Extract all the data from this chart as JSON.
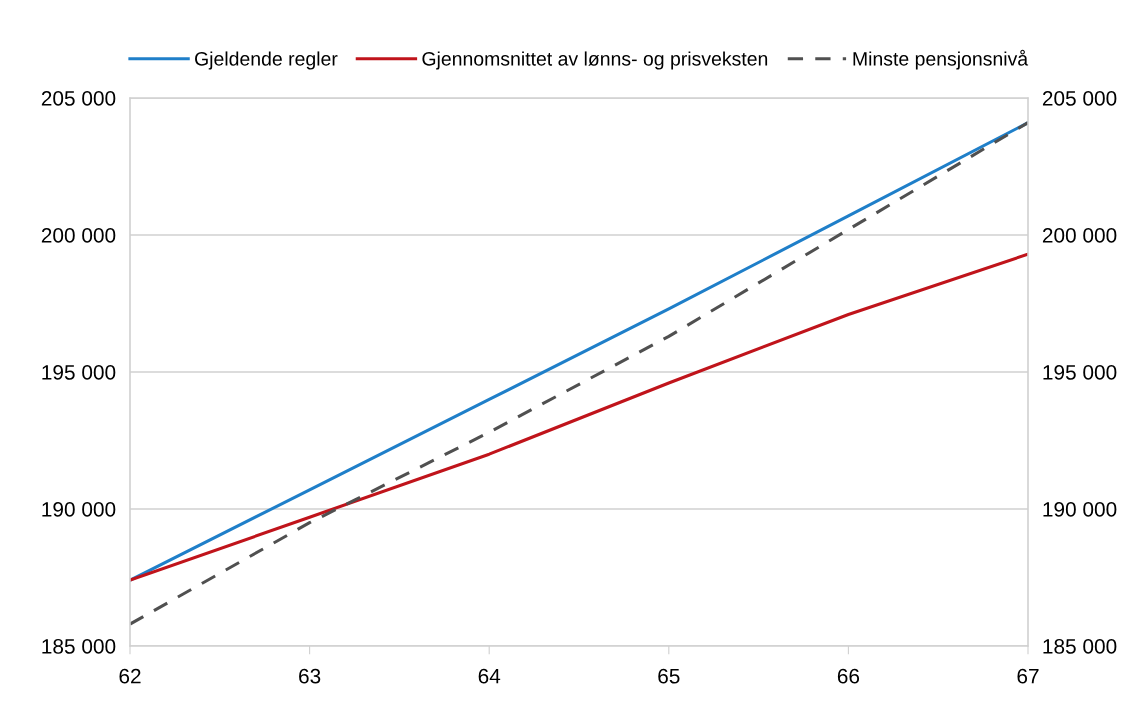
{
  "chart_data": {
    "type": "line",
    "x": [
      62,
      63,
      64,
      65,
      66,
      67
    ],
    "series": [
      {
        "name": "Gjeldende regler",
        "color": "#1f7fc9",
        "values": [
          187400,
          190700,
          194000,
          197300,
          200700,
          204100
        ]
      },
      {
        "name": "Gjennomsnittet av lønns- og prisveksten",
        "color": "#c0141b",
        "values": [
          187400,
          189700,
          192000,
          194600,
          197100,
          199300
        ]
      },
      {
        "name": "Minste pensjonsnivå",
        "color": "#505050",
        "line_style": "dashed",
        "values": [
          185800,
          189500,
          192800,
          196300,
          200200,
          204100
        ]
      }
    ],
    "xlim": [
      62,
      67
    ],
    "xticks": [
      62,
      63,
      64,
      65,
      66,
      67
    ],
    "ylim": [
      185000,
      205000
    ],
    "yticks": [
      {
        "value": 185000,
        "label": "185 000"
      },
      {
        "value": 190000,
        "label": "190 000"
      },
      {
        "value": 195000,
        "label": "195 000"
      },
      {
        "value": 200000,
        "label": "200 000"
      },
      {
        "value": 205000,
        "label": "205 000"
      }
    ],
    "y2lim": [
      185000,
      205000
    ],
    "y2ticks": [
      {
        "value": 185000,
        "label": "185 000"
      },
      {
        "value": 190000,
        "label": "190 000"
      },
      {
        "value": 195000,
        "label": "195 000"
      },
      {
        "value": 200000,
        "label": "200 000"
      },
      {
        "value": 205000,
        "label": "205 000"
      }
    ],
    "grid": "y",
    "legend": "top",
    "marker": "none",
    "line_style": "solid"
  }
}
